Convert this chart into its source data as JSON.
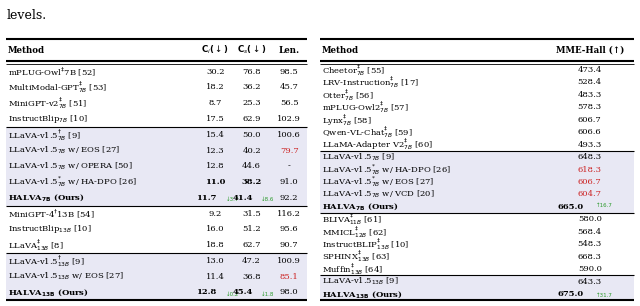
{
  "left_table": {
    "groups": [
      {
        "highlight_bg": false,
        "rows": [
          {
            "method": "mPLUG-Owl$^{\\ddagger}$7B [52]",
            "ref_color": true,
            "ci": "30.2",
            "cs": "76.8",
            "len": "98.5",
            "bold": false,
            "ours": false,
            "len_red": false
          },
          {
            "method": "MultiModal-GPT$^{\\ddagger}_{7B}$ [53]",
            "ref_color": true,
            "ci": "18.2",
            "cs": "36.2",
            "len": "45.7",
            "bold": false,
            "ours": false,
            "len_red": false
          },
          {
            "method": "MiniGPT-v2$^{\\ddagger}_{7B}$ [51]",
            "ref_color": true,
            "ci": "8.7",
            "cs": "25.3",
            "len": "56.5",
            "bold": false,
            "ours": false,
            "len_red": false
          },
          {
            "method": "InstructBlip$_{7B}$ [10]",
            "ref_color": true,
            "ci": "17.5",
            "cs": "62.9",
            "len": "102.9",
            "bold": false,
            "ours": false,
            "len_red": false
          }
        ]
      },
      {
        "highlight_bg": true,
        "rows": [
          {
            "method": "LLaVA-v1.5$^{\\dagger}_{7B}$ [9]",
            "ref_color": true,
            "ci": "15.4",
            "cs": "50.0",
            "len": "100.6",
            "bold": false,
            "ours": false,
            "len_red": false
          },
          {
            "method": "LLaVA-v1.5$_{7B}$ w/ EOS [27]",
            "ref_color": true,
            "ci": "12.3",
            "cs": "40.2",
            "len": "79.7",
            "bold": false,
            "ours": false,
            "len_red": true
          },
          {
            "method": "LLaVA-v1.5$_{7B}$ w/ OPERA [50]",
            "ref_color": true,
            "ci": "12.8",
            "cs": "44.6",
            "len": "-",
            "bold": false,
            "ours": false,
            "len_red": false
          },
          {
            "method": "LLaVA-v1.5$^{*}_{7B}$ w/ HA-DPO [26]",
            "ref_color": true,
            "ci": "11.0",
            "cs": "38.2",
            "len": "91.0",
            "bold": true,
            "ours": false,
            "len_red": false
          },
          {
            "method": "\\textbf{HALVA}$_{\\mathbf{7B}}$ \\textbf{(Ours)}",
            "ref_color": false,
            "ci": "11.7",
            "ci_sub": "\\downarrow 3.7",
            "cs": "41.4",
            "cs_sub": "\\downarrow 8.6",
            "len": "92.2",
            "bold": true,
            "ours": true,
            "len_red": false
          }
        ]
      },
      {
        "highlight_bg": false,
        "rows": [
          {
            "method": "MiniGPT-4$^{\\dagger}$13B [54]",
            "ref_color": true,
            "ci": "9.2",
            "cs": "31.5",
            "len": "116.2",
            "bold": false,
            "ours": false,
            "len_red": false
          },
          {
            "method": "InstructBlip$_{13B}$ [10]",
            "ref_color": true,
            "ci": "16.0",
            "cs": "51.2",
            "len": "95.6",
            "bold": false,
            "ours": false,
            "len_red": false
          },
          {
            "method": "LLaVA$^{\\ddagger}_{13B}$ [8]",
            "ref_color": true,
            "ci": "18.8",
            "cs": "62.7",
            "len": "90.7",
            "bold": false,
            "ours": false,
            "len_red": false
          }
        ]
      },
      {
        "highlight_bg": true,
        "rows": [
          {
            "method": "LLaVA-v1.5$^{\\dagger}_{13B}$ [9]",
            "ref_color": true,
            "ci": "13.0",
            "cs": "47.2",
            "len": "100.9",
            "bold": false,
            "ours": false,
            "len_red": false
          },
          {
            "method": "LLaVA-v1.5$_{13B}$ w/ EOS [27]",
            "ref_color": true,
            "ci": "11.4",
            "cs": "36.8",
            "len": "85.1",
            "bold": false,
            "ours": false,
            "len_red": true
          },
          {
            "method": "\\textbf{HALVA}$_{\\mathbf{13B}}$ \\textbf{(Ours)}",
            "ref_color": false,
            "ci": "12.8",
            "ci_sub": "\\downarrow 0.2",
            "cs": "45.4",
            "cs_sub": "\\downarrow 1.8",
            "len": "98.0",
            "bold": true,
            "ours": true,
            "len_red": false
          }
        ]
      }
    ]
  },
  "right_table": {
    "groups": [
      {
        "highlight_bg": false,
        "rows": [
          {
            "method": "Cheetor$_{7B}^{\\ddagger}$ [55]",
            "val": "473.4",
            "bold": false,
            "ours": false,
            "val_red": false
          },
          {
            "method": "LRV-Instruction$_{7B}^{\\ddagger}$ [17]",
            "val": "528.4",
            "bold": false,
            "ours": false,
            "val_red": false
          },
          {
            "method": "Otter$_{7B}^{\\ddagger}$ [56]",
            "val": "483.3",
            "bold": false,
            "ours": false,
            "val_red": false
          },
          {
            "method": "mPLUG-Owl2$_{7B}^{\\ddagger}$ [57]",
            "val": "578.3",
            "bold": false,
            "ours": false,
            "val_red": false
          },
          {
            "method": "Lynx$_{7B}^{\\ddagger}$ [58]",
            "val": "606.7",
            "bold": false,
            "ours": false,
            "val_red": false
          },
          {
            "method": "Qwen-VL-Chat$_{7B}^{\\ddagger}$ [59]",
            "val": "606.6",
            "bold": false,
            "ours": false,
            "val_red": false
          },
          {
            "method": "LLaMA-Adapter V2$_{7B}^{\\ddagger}$ [60]",
            "val": "493.3",
            "bold": false,
            "ours": false,
            "val_red": false
          }
        ]
      },
      {
        "highlight_bg": true,
        "rows": [
          {
            "method": "LLaVA-v1.5$_{7B}$ [9]",
            "val": "648.3",
            "bold": false,
            "ours": false,
            "val_red": false
          },
          {
            "method": "LLaVA-v1.5$^{*}_{7B}$ w/ HA-DPO [26]",
            "val": "618.3",
            "bold": false,
            "ours": false,
            "val_red": true
          },
          {
            "method": "LLaVA-v1.5$^{*}_{7B}$ w/ EOS [27]",
            "val": "606.7",
            "bold": false,
            "ours": false,
            "val_red": true
          },
          {
            "method": "LLaVA-v1.5$_{7B}$ w/ VCD [20]",
            "val": "604.7",
            "bold": false,
            "ours": false,
            "val_red": true
          },
          {
            "method": "\\textbf{HALVA}$_{\\mathbf{7B}}$ \\textbf{(Ours)}",
            "val": "665.0",
            "val_sub": "\\uparrow 16.7",
            "val_sub_sup": true,
            "bold": true,
            "ours": true,
            "val_red": false
          }
        ]
      },
      {
        "highlight_bg": false,
        "rows": [
          {
            "method": "BLIVA$_{11B}^{\\ddagger}$ [61]",
            "val": "580.0",
            "bold": false,
            "ours": false,
            "val_red": false
          },
          {
            "method": "MMICL$_{12B}^{\\ddagger}$ [62]",
            "val": "568.4",
            "bold": false,
            "ours": false,
            "val_red": false
          },
          {
            "method": "InstructBLIP$_{13B}^{\\ddagger}$ [10]",
            "val": "548.3",
            "bold": false,
            "ours": false,
            "val_red": false
          },
          {
            "method": "SPHINX$_{13B}^{\\ddagger}$ [63]",
            "val": "668.3",
            "bold": false,
            "ours": false,
            "val_red": false
          },
          {
            "method": "Muffin$_{13B}^{\\ddagger}$ [64]",
            "val": "590.0",
            "bold": false,
            "ours": false,
            "val_red": false
          }
        ]
      },
      {
        "highlight_bg": true,
        "rows": [
          {
            "method": "LLaVA-v1.5$_{13B}$ [9]",
            "val": "643.3",
            "bold": false,
            "ours": false,
            "val_red": false
          },
          {
            "method": "\\textbf{HALVA}$_{\\mathbf{13B}}$ \\textbf{(Ours)}",
            "val": "675.0",
            "val_sub": "\\uparrow 31.7",
            "val_sub_sup": false,
            "bold": true,
            "ours": true,
            "val_red": false
          }
        ]
      }
    ]
  },
  "highlight_color": "#e8e8f4",
  "green_color": "#2a9a2a",
  "red_color": "#cc2222",
  "font_size": 6.2,
  "title": "levels."
}
